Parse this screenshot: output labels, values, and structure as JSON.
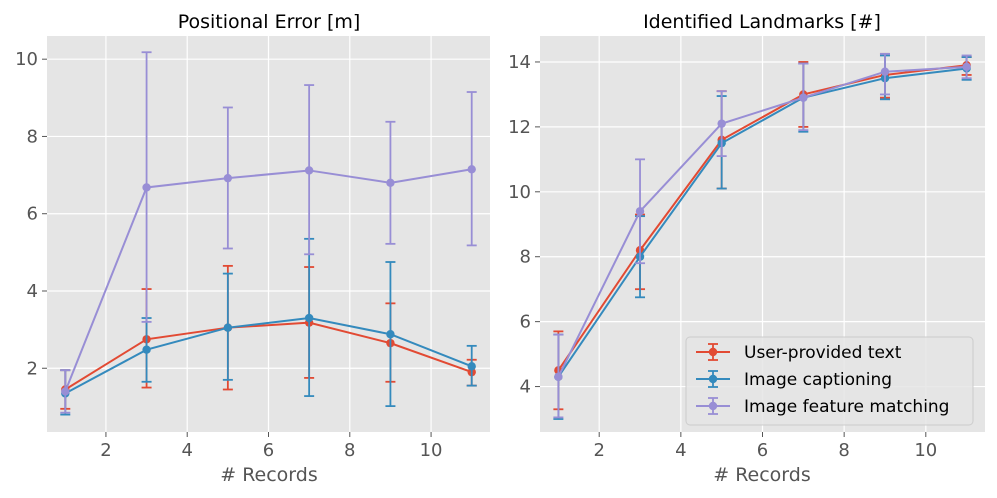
{
  "chart_data": [
    {
      "type": "line",
      "title": "Positional Error [m]",
      "xlabel": "# Records",
      "ylabel": "",
      "xlim": [
        0.55,
        11.45
      ],
      "ylim": [
        0.35,
        10.6
      ],
      "xticks": [
        2,
        4,
        6,
        8,
        10
      ],
      "yticks": [
        2,
        4,
        6,
        8,
        10
      ],
      "grid": true,
      "x": [
        1,
        3,
        5,
        7,
        9,
        11
      ],
      "series": [
        {
          "name": "User-provided text",
          "color": "#e24a33",
          "values": [
            1.45,
            2.75,
            3.05,
            3.18,
            2.65,
            1.9
          ],
          "err_low": [
            0.95,
            1.5,
            1.45,
            1.75,
            1.65,
            1.55
          ],
          "err_high": [
            1.95,
            4.05,
            4.65,
            4.62,
            3.68,
            2.22
          ]
        },
        {
          "name": "Image captioning",
          "color": "#348abd",
          "values": [
            1.35,
            2.48,
            3.05,
            3.3,
            2.88,
            2.05
          ],
          "err_low": [
            0.8,
            1.65,
            1.7,
            1.28,
            1.02,
            1.55
          ],
          "err_high": [
            1.95,
            3.3,
            4.45,
            5.35,
            4.75,
            2.58
          ]
        },
        {
          "name": "Image feature matching",
          "color": "#988ed5",
          "values": [
            1.4,
            6.68,
            6.92,
            7.12,
            6.8,
            7.15
          ],
          "err_low": [
            0.85,
            3.2,
            5.1,
            4.95,
            5.22,
            5.18
          ],
          "err_high": [
            1.95,
            10.18,
            8.75,
            9.33,
            8.38,
            9.15
          ]
        }
      ]
    },
    {
      "type": "line",
      "title": "Identified Landmarks [#]",
      "xlabel": "# Records",
      "ylabel": "",
      "xlim": [
        0.55,
        11.45
      ],
      "ylim": [
        2.6,
        14.8
      ],
      "xticks": [
        2,
        4,
        6,
        8,
        10
      ],
      "yticks": [
        4,
        6,
        8,
        10,
        12,
        14
      ],
      "grid": true,
      "legend_position": "lower-right",
      "x": [
        1,
        3,
        5,
        7,
        9,
        11
      ],
      "series": [
        {
          "name": "User-provided text",
          "color": "#e24a33",
          "values": [
            4.5,
            8.2,
            11.6,
            13.0,
            13.6,
            13.9
          ],
          "err_low": [
            3.3,
            7.0,
            10.1,
            12.0,
            12.9,
            13.6
          ],
          "err_high": [
            5.7,
            9.3,
            13.1,
            14.0,
            14.25,
            14.15
          ]
        },
        {
          "name": "Image captioning",
          "color": "#348abd",
          "values": [
            4.3,
            8.0,
            11.5,
            12.9,
            13.5,
            13.8
          ],
          "err_low": [
            3.0,
            6.75,
            10.1,
            11.85,
            12.85,
            13.45
          ],
          "err_high": [
            5.6,
            9.25,
            12.95,
            13.95,
            14.2,
            14.15
          ]
        },
        {
          "name": "Image feature matching",
          "color": "#988ed5",
          "values": [
            4.3,
            9.4,
            12.1,
            12.9,
            13.7,
            13.85
          ],
          "err_low": [
            3.05,
            7.8,
            11.1,
            11.9,
            13.0,
            13.5
          ],
          "err_high": [
            5.6,
            11.0,
            13.1,
            13.95,
            14.25,
            14.2
          ]
        }
      ]
    }
  ],
  "legend": [
    {
      "label": "User-provided text",
      "color": "#e24a33"
    },
    {
      "label": "Image captioning",
      "color": "#348abd"
    },
    {
      "label": "Image feature matching",
      "color": "#988ed5"
    }
  ]
}
